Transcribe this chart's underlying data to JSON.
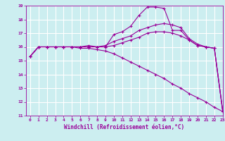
{
  "title": "",
  "xlabel": "Windchill (Refroidissement éolien,°C)",
  "ylabel": "",
  "xlim": [
    -0.5,
    23
  ],
  "ylim": [
    11,
    19
  ],
  "yticks": [
    11,
    12,
    13,
    14,
    15,
    16,
    17,
    18,
    19
  ],
  "xticks": [
    0,
    1,
    2,
    3,
    4,
    5,
    6,
    7,
    8,
    9,
    10,
    11,
    12,
    13,
    14,
    15,
    16,
    17,
    18,
    19,
    20,
    21,
    22,
    23
  ],
  "background_color": "#cceef0",
  "grid_color": "#ffffff",
  "line_color": "#990099",
  "curves": [
    [
      15.3,
      16.0,
      16.0,
      16.0,
      16.0,
      16.0,
      16.0,
      16.1,
      16.0,
      16.0,
      16.9,
      17.1,
      17.5,
      18.3,
      18.9,
      18.9,
      18.8,
      17.2,
      17.2,
      16.5,
      16.1,
      16.0,
      15.9,
      11.3
    ],
    [
      15.3,
      16.0,
      16.0,
      16.0,
      16.0,
      16.0,
      16.0,
      16.0,
      16.0,
      16.1,
      16.4,
      16.6,
      16.8,
      17.2,
      17.4,
      17.6,
      17.7,
      17.6,
      17.4,
      16.6,
      16.2,
      16.0,
      15.9,
      11.3
    ],
    [
      15.3,
      16.0,
      16.0,
      16.0,
      16.0,
      16.0,
      16.0,
      16.0,
      16.0,
      16.0,
      16.1,
      16.3,
      16.5,
      16.7,
      17.0,
      17.1,
      17.1,
      17.0,
      16.8,
      16.5,
      16.1,
      16.0,
      15.9,
      11.3
    ],
    [
      15.3,
      16.0,
      16.0,
      16.0,
      16.0,
      16.0,
      15.9,
      15.9,
      15.8,
      15.7,
      15.5,
      15.2,
      14.9,
      14.6,
      14.3,
      14.0,
      13.7,
      13.3,
      13.0,
      12.6,
      12.3,
      12.0,
      11.6,
      11.3
    ]
  ]
}
